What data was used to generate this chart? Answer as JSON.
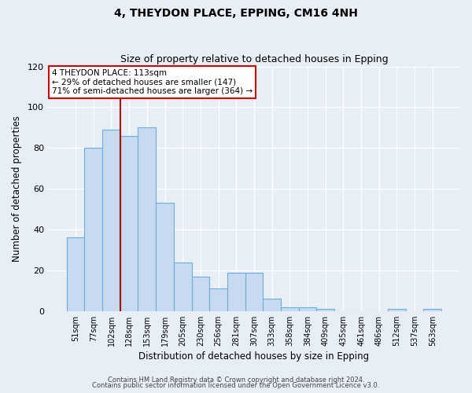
{
  "title": "4, THEYDON PLACE, EPPING, CM16 4NH",
  "subtitle": "Size of property relative to detached houses in Epping",
  "xlabel": "Distribution of detached houses by size in Epping",
  "ylabel": "Number of detached properties",
  "bin_labels": [
    "51sqm",
    "77sqm",
    "102sqm",
    "128sqm",
    "153sqm",
    "179sqm",
    "205sqm",
    "230sqm",
    "256sqm",
    "281sqm",
    "307sqm",
    "333sqm",
    "358sqm",
    "384sqm",
    "409sqm",
    "435sqm",
    "461sqm",
    "486sqm",
    "512sqm",
    "537sqm",
    "563sqm"
  ],
  "bar_values": [
    36,
    80,
    89,
    86,
    90,
    53,
    24,
    17,
    11,
    19,
    19,
    6,
    2,
    2,
    1,
    0,
    0,
    0,
    1,
    0,
    1
  ],
  "bar_color": "#c8daf0",
  "bar_edge_color": "#6baed6",
  "bar_width": 1.0,
  "ylim": [
    0,
    120
  ],
  "yticks": [
    0,
    20,
    40,
    60,
    80,
    100,
    120
  ],
  "vline_x_index": 3,
  "vline_color": "#aa0000",
  "annotation_text": "4 THEYDON PLACE: 113sqm\n← 29% of detached houses are smaller (147)\n71% of semi-detached houses are larger (364) →",
  "annotation_box_color": "#cc0000",
  "footer_line1": "Contains HM Land Registry data © Crown copyright and database right 2024.",
  "footer_line2": "Contains public sector information licensed under the Open Government Licence v3.0.",
  "background_color": "#e8eef5",
  "plot_bg_color": "#e8eef5",
  "grid_color": "#ffffff"
}
